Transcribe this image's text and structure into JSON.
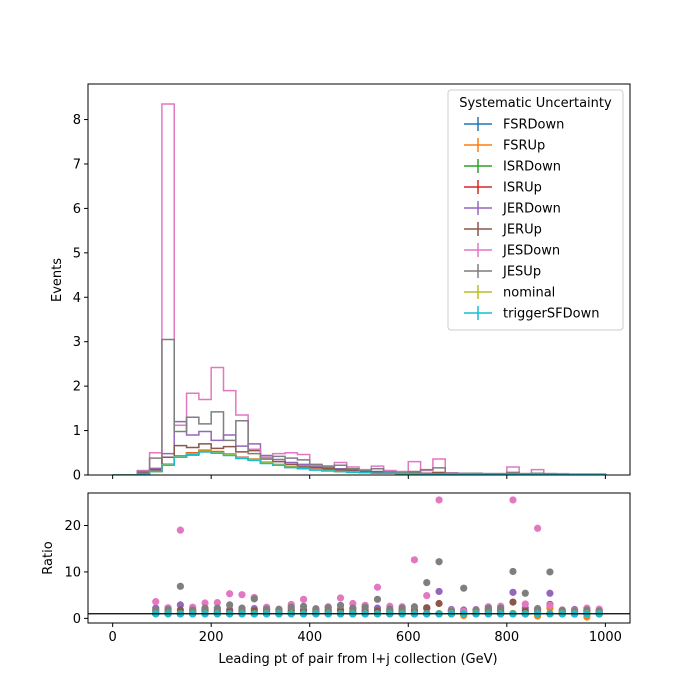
{
  "chart_data": [
    {
      "type": "line",
      "title": "",
      "xlabel": "",
      "ylabel": "Events",
      "xlim": [
        -50,
        1050
      ],
      "ylim": [
        0,
        8.8
      ],
      "x_ticks": [
        "0",
        "200",
        "400",
        "600",
        "800",
        "1000"
      ],
      "y_ticks": [
        "0",
        "1",
        "2",
        "3",
        "4",
        "5",
        "6",
        "7",
        "8"
      ],
      "legend": {
        "title": "Systematic Uncertainty",
        "placement": "top-right",
        "entries": [
          "FSRDown",
          "FSRUp",
          "ISRDown",
          "ISRUp",
          "JERDown",
          "JERUp",
          "JESDown",
          "JESUp",
          "nominal",
          "triggerSFDown"
        ]
      },
      "bin_edges": [
        0,
        25,
        50,
        75,
        100,
        125,
        150,
        175,
        200,
        225,
        250,
        275,
        300,
        325,
        350,
        375,
        400,
        425,
        450,
        475,
        500,
        525,
        550,
        575,
        600,
        625,
        650,
        675,
        700,
        725,
        750,
        775,
        800,
        825,
        850,
        875,
        900,
        925,
        950,
        975,
        1000
      ],
      "series": [
        {
          "name": "FSRDown",
          "color": "#1f77b4",
          "values": [
            0,
            0,
            0.02,
            0.08,
            0.22,
            0.4,
            0.45,
            0.52,
            0.5,
            0.45,
            0.38,
            0.34,
            0.27,
            0.22,
            0.17,
            0.15,
            0.12,
            0.1,
            0.08,
            0.07,
            0.05,
            0.04,
            0.04,
            0.03,
            0.03,
            0.02,
            0.02,
            0.02,
            0.02,
            0.01,
            0.01,
            0.01,
            0.01,
            0.01,
            0.01,
            0.01,
            0.01,
            0.01,
            0.01,
            0.01
          ]
        },
        {
          "name": "FSRUp",
          "color": "#ff7f0e",
          "values": [
            0,
            0,
            0.02,
            0.09,
            0.24,
            0.43,
            0.5,
            0.56,
            0.53,
            0.47,
            0.4,
            0.36,
            0.29,
            0.24,
            0.19,
            0.16,
            0.13,
            0.11,
            0.09,
            0.07,
            0.06,
            0.05,
            0.04,
            0.03,
            0.03,
            0.03,
            0.02,
            0.02,
            0.02,
            0.01,
            0.01,
            0.01,
            0.01,
            0.01,
            0.01,
            0.01,
            0.01,
            0.01,
            0.01,
            0.01
          ]
        },
        {
          "name": "ISRDown",
          "color": "#2ca02c",
          "values": [
            0,
            0,
            0.02,
            0.08,
            0.23,
            0.41,
            0.47,
            0.54,
            0.51,
            0.46,
            0.39,
            0.35,
            0.28,
            0.23,
            0.18,
            0.15,
            0.12,
            0.1,
            0.08,
            0.07,
            0.05,
            0.04,
            0.04,
            0.03,
            0.03,
            0.02,
            0.02,
            0.02,
            0.02,
            0.01,
            0.01,
            0.01,
            0.01,
            0.01,
            0.01,
            0.01,
            0.01,
            0.01,
            0.01,
            0.01
          ]
        },
        {
          "name": "ISRUp",
          "color": "#d62728",
          "values": [
            0,
            0,
            0.02,
            0.09,
            0.24,
            0.42,
            0.49,
            0.55,
            0.52,
            0.47,
            0.4,
            0.35,
            0.28,
            0.23,
            0.18,
            0.16,
            0.13,
            0.1,
            0.09,
            0.07,
            0.06,
            0.05,
            0.04,
            0.03,
            0.03,
            0.02,
            0.02,
            0.02,
            0.02,
            0.01,
            0.01,
            0.01,
            0.01,
            0.01,
            0.01,
            0.01,
            0.01,
            0.01,
            0.01,
            0.01
          ]
        },
        {
          "name": "JERDown",
          "color": "#9467bd",
          "values": [
            0,
            0,
            0.05,
            0.15,
            0.48,
            1.2,
            0.9,
            0.98,
            0.78,
            0.9,
            0.65,
            0.7,
            0.44,
            0.35,
            0.28,
            0.24,
            0.2,
            0.17,
            0.14,
            0.12,
            0.1,
            0.08,
            0.07,
            0.06,
            0.05,
            0.04,
            0.06,
            0.04,
            0.03,
            0.03,
            0.02,
            0.02,
            0.03,
            0.02,
            0.02,
            0.02,
            0.02,
            0.01,
            0.01,
            0.01
          ]
        },
        {
          "name": "JERUp",
          "color": "#8c564b",
          "values": [
            0,
            0,
            0.04,
            0.12,
            0.4,
            0.66,
            0.62,
            0.7,
            0.6,
            0.64,
            0.52,
            0.55,
            0.36,
            0.3,
            0.24,
            0.2,
            0.17,
            0.14,
            0.12,
            0.1,
            0.08,
            0.07,
            0.06,
            0.05,
            0.04,
            0.04,
            0.05,
            0.03,
            0.03,
            0.02,
            0.02,
            0.02,
            0.02,
            0.02,
            0.02,
            0.01,
            0.01,
            0.01,
            0.01,
            0.01
          ]
        },
        {
          "name": "JESDown",
          "color": "#e377c2",
          "values": [
            0,
            0,
            0.1,
            0.5,
            8.35,
            1.12,
            1.84,
            1.7,
            2.42,
            1.9,
            1.35,
            0.58,
            0.4,
            0.48,
            0.5,
            0.46,
            0.22,
            0.2,
            0.28,
            0.18,
            0.12,
            0.2,
            0.1,
            0.08,
            0.3,
            0.1,
            0.36,
            0.05,
            0.04,
            0.03,
            0.03,
            0.03,
            0.18,
            0.03,
            0.12,
            0.03,
            0.03,
            0.02,
            0.02,
            0.02
          ]
        },
        {
          "name": "JESUp",
          "color": "#7f7f7f",
          "values": [
            0,
            0,
            0.08,
            0.38,
            3.05,
            0.98,
            1.3,
            1.15,
            1.42,
            0.78,
            1.22,
            0.48,
            0.36,
            0.42,
            0.38,
            0.34,
            0.24,
            0.2,
            0.22,
            0.14,
            0.1,
            0.14,
            0.07,
            0.06,
            0.08,
            0.12,
            0.16,
            0.04,
            0.04,
            0.04,
            0.03,
            0.03,
            0.06,
            0.03,
            0.04,
            0.03,
            0.02,
            0.02,
            0.02,
            0.02
          ]
        },
        {
          "name": "nominal",
          "color": "#bcbd22",
          "values": [
            0,
            0,
            0.02,
            0.08,
            0.23,
            0.41,
            0.48,
            0.54,
            0.51,
            0.46,
            0.39,
            0.35,
            0.28,
            0.23,
            0.18,
            0.15,
            0.12,
            0.1,
            0.08,
            0.07,
            0.05,
            0.04,
            0.04,
            0.03,
            0.03,
            0.02,
            0.02,
            0.02,
            0.02,
            0.01,
            0.01,
            0.01,
            0.01,
            0.01,
            0.01,
            0.01,
            0.01,
            0.01,
            0.01,
            0.01
          ]
        },
        {
          "name": "triggerSFDown",
          "color": "#17becf",
          "values": [
            0,
            0,
            0.02,
            0.08,
            0.22,
            0.4,
            0.46,
            0.52,
            0.49,
            0.44,
            0.37,
            0.33,
            0.26,
            0.22,
            0.17,
            0.14,
            0.11,
            0.09,
            0.08,
            0.06,
            0.05,
            0.04,
            0.04,
            0.03,
            0.03,
            0.02,
            0.02,
            0.02,
            0.02,
            0.01,
            0.01,
            0.01,
            0.01,
            0.01,
            0.01,
            0.01,
            0.01,
            0.01,
            0.01,
            0.01
          ]
        }
      ]
    },
    {
      "type": "scatter",
      "title": "",
      "xlabel": "Leading pt of pair from l+j collection (GeV)",
      "ylabel": "Ratio",
      "xlim": [
        -50,
        1050
      ],
      "ylim": [
        -1,
        27
      ],
      "x_ticks": [
        "0",
        "200",
        "400",
        "600",
        "800",
        "1000"
      ],
      "y_ticks": [
        "0",
        "10",
        "20"
      ],
      "reference_line": 1,
      "x": [
        87.5,
        112.5,
        137.5,
        162.5,
        187.5,
        212.5,
        237.5,
        262.5,
        287.5,
        312.5,
        337.5,
        362.5,
        387.5,
        412.5,
        437.5,
        462.5,
        487.5,
        512.5,
        537.5,
        562.5,
        587.5,
        612.5,
        637.5,
        662.5,
        687.5,
        712.5,
        737.5,
        762.5,
        787.5,
        812.5,
        837.5,
        862.5,
        887.5,
        912.5,
        937.5,
        962.5,
        987.5
      ],
      "series": [
        {
          "name": "FSRDown",
          "color": "#1f77b4",
          "values": [
            1.0,
            1.0,
            0.98,
            0.97,
            0.98,
            0.98,
            0.97,
            0.97,
            0.96,
            0.97,
            0.96,
            0.97,
            0.96,
            0.97,
            0.96,
            0.97,
            0.96,
            0.96,
            0.97,
            0.96,
            0.95,
            0.96,
            0.96,
            0.95,
            0.95,
            0.96,
            0.95,
            0.95,
            0.94,
            0.95,
            0.94,
            0.94,
            0.95,
            0.94,
            0.93,
            0.94,
            0.93
          ]
        },
        {
          "name": "FSRUp",
          "color": "#ff7f0e",
          "values": [
            1.05,
            1.04,
            1.05,
            1.04,
            1.05,
            1.03,
            1.04,
            1.03,
            1.05,
            1.04,
            1.03,
            1.04,
            1.05,
            1.03,
            1.04,
            1.03,
            1.05,
            1.04,
            1.03,
            1.04,
            1.05,
            1.03,
            1.04,
            1.03,
            1.05,
            0.6,
            1.04,
            1.03,
            1.04,
            1.05,
            1.04,
            0.5,
            2.2,
            1.04,
            1.05,
            0.3,
            1.04
          ]
        },
        {
          "name": "ISRDown",
          "color": "#2ca02c",
          "values": [
            0.99,
            1.0,
            0.99,
            1.0,
            0.99,
            1.0,
            0.99,
            0.99,
            1.0,
            0.99,
            0.99,
            1.0,
            0.99,
            1.0,
            0.99,
            0.99,
            1.0,
            0.99,
            0.99,
            1.0,
            0.99,
            0.99,
            1.0,
            0.99,
            0.99,
            1.0,
            0.99,
            0.99,
            1.0,
            0.99,
            0.99,
            1.0,
            0.99,
            0.99,
            1.0,
            0.99,
            0.99
          ]
        },
        {
          "name": "ISRUp",
          "color": "#d62728",
          "values": [
            1.02,
            1.01,
            1.02,
            1.01,
            1.02,
            1.02,
            1.01,
            1.02,
            1.01,
            1.02,
            1.02,
            1.01,
            1.02,
            1.01,
            1.02,
            1.02,
            1.01,
            1.02,
            1.01,
            1.02,
            1.02,
            1.01,
            1.02,
            1.01,
            1.02,
            1.02,
            1.01,
            1.02,
            1.01,
            1.02,
            1.02,
            1.01,
            1.02,
            1.01,
            1.02,
            1.02,
            1.01
          ]
        },
        {
          "name": "JERDown",
          "color": "#9467bd",
          "values": [
            2.2,
            2.1,
            2.9,
            1.9,
            2.0,
            1.8,
            1.9,
            1.8,
            2.1,
            1.9,
            1.8,
            2.0,
            1.9,
            1.8,
            1.9,
            2.0,
            2.1,
            1.9,
            2.2,
            1.8,
            1.9,
            2.0,
            2.1,
            5.8,
            1.9,
            1.8,
            1.9,
            2.0,
            1.9,
            5.6,
            2.2,
            1.9,
            5.4,
            1.8,
            1.9,
            1.7,
            1.6
          ]
        },
        {
          "name": "JERUp",
          "color": "#8c564b",
          "values": [
            1.6,
            1.5,
            1.8,
            1.5,
            1.6,
            1.4,
            1.5,
            1.4,
            1.6,
            1.5,
            1.4,
            1.5,
            1.6,
            1.4,
            1.5,
            1.6,
            1.5,
            1.4,
            1.6,
            1.5,
            1.4,
            1.5,
            2.3,
            3.2,
            1.5,
            1.4,
            1.5,
            1.6,
            1.5,
            3.5,
            1.6,
            1.5,
            3.0,
            1.4,
            1.5,
            1.4,
            1.3
          ]
        },
        {
          "name": "JESDown",
          "color": "#e377c2",
          "values": [
            3.6,
            2.3,
            19.0,
            2.4,
            3.3,
            3.4,
            5.3,
            5.1,
            4.5,
            2.4,
            2.0,
            3.0,
            4.1,
            2.1,
            2.5,
            4.4,
            3.2,
            2.8,
            6.7,
            2.6,
            2.5,
            12.6,
            4.9,
            25.5,
            1.7,
            1.5,
            1.8,
            2.5,
            2.6,
            25.5,
            3.1,
            19.4,
            2.8,
            1.8,
            1.6,
            2.2,
            2.0
          ]
        },
        {
          "name": "JESUp",
          "color": "#7f7f7f",
          "values": [
            1.8,
            1.9,
            6.9,
            1.8,
            2.2,
            2.2,
            2.9,
            2.2,
            4.2,
            2.0,
            1.9,
            2.4,
            2.6,
            2.0,
            2.3,
            2.8,
            2.2,
            2.4,
            4.1,
            2.0,
            2.2,
            2.5,
            7.7,
            12.2,
            1.6,
            6.5,
            1.7,
            2.2,
            2.2,
            10.1,
            5.4,
            2.1,
            10.0,
            1.7,
            1.5,
            1.8,
            1.6
          ]
        },
        {
          "name": "nominal",
          "color": "#bcbd22",
          "values": [
            1,
            1,
            1,
            1,
            1,
            1,
            1,
            1,
            1,
            1,
            1,
            1,
            1,
            1,
            1,
            1,
            1,
            1,
            1,
            1,
            1,
            1,
            1,
            1,
            1,
            1,
            1,
            1,
            1,
            1,
            1,
            1,
            1,
            1,
            1,
            1,
            1
          ]
        },
        {
          "name": "triggerSFDown",
          "color": "#17becf",
          "values": [
            0.97,
            0.96,
            0.96,
            0.95,
            0.96,
            0.95,
            0.95,
            0.96,
            0.95,
            0.95,
            0.96,
            0.95,
            0.95,
            0.96,
            0.95,
            0.95,
            0.96,
            0.95,
            0.95,
            0.96,
            0.95,
            0.95,
            0.96,
            0.95,
            0.95,
            0.96,
            0.95,
            0.95,
            0.96,
            0.95,
            0.95,
            0.96,
            0.95,
            0.95,
            0.96,
            0.95,
            0.95
          ]
        }
      ]
    }
  ]
}
